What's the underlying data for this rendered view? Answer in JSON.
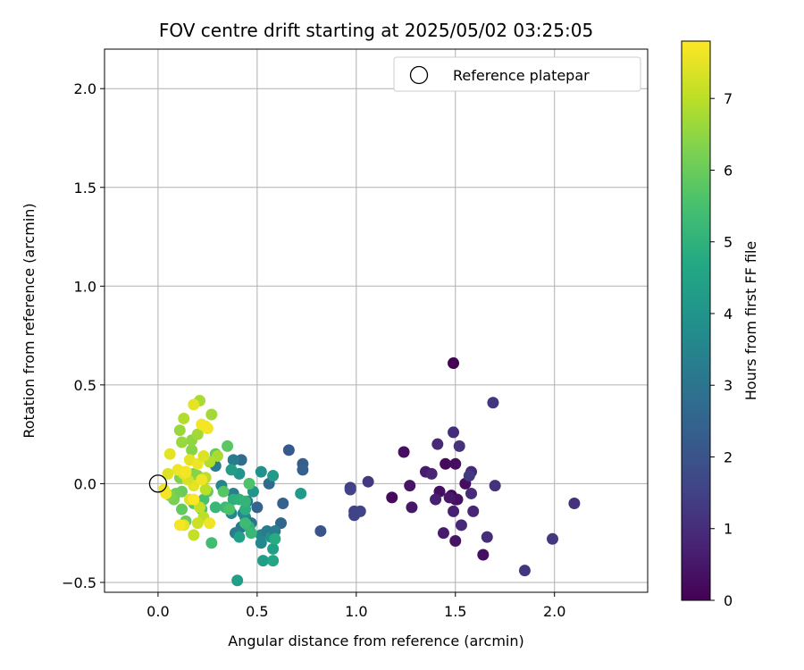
{
  "chart_data": {
    "type": "scatter",
    "title": "FOV centre drift starting at 2025/05/02 03:25:05",
    "xlabel": "Angular distance from reference (arcmin)",
    "ylabel": "Rotation from reference (arcmin)",
    "xlim": [
      -0.27,
      2.47
    ],
    "ylim": [
      -0.55,
      2.2
    ],
    "xticks": [
      0.0,
      0.5,
      1.0,
      1.5,
      2.0
    ],
    "xtick_labels": [
      "0.0",
      "0.5",
      "1.0",
      "1.5",
      "2.0"
    ],
    "yticks": [
      -0.5,
      0.0,
      0.5,
      1.0,
      1.5,
      2.0
    ],
    "ytick_labels": [
      "−0.5",
      "0.0",
      "0.5",
      "1.0",
      "1.5",
      "2.0"
    ],
    "grid": true,
    "legend": {
      "placement": "top-right",
      "entries": [
        "Reference platepar"
      ]
    },
    "reference_point": {
      "x": 0.0,
      "y": 0.0,
      "label": "Reference platepar"
    },
    "colorbar": {
      "label": "Hours from first FF file",
      "range": [
        0,
        7.8
      ],
      "ticks": [
        0,
        1,
        2,
        3,
        4,
        5,
        6,
        7
      ],
      "tick_labels": [
        "0",
        "1",
        "2",
        "3",
        "4",
        "5",
        "6",
        "7"
      ],
      "colormap": "viridis"
    },
    "points": [
      [
        1.49,
        0.61,
        0.0
      ],
      [
        1.45,
        0.1,
        0.2
      ],
      [
        1.5,
        0.1,
        0.3
      ],
      [
        1.55,
        0.0,
        0.25
      ],
      [
        1.42,
        -0.04,
        0.3
      ],
      [
        1.48,
        -0.06,
        0.1
      ],
      [
        1.5,
        -0.08,
        0.15
      ],
      [
        1.51,
        -0.08,
        0.35
      ],
      [
        1.47,
        -0.07,
        0.5
      ],
      [
        1.44,
        -0.25,
        0.6
      ],
      [
        1.5,
        -0.29,
        0.4
      ],
      [
        1.64,
        -0.36,
        0.3
      ],
      [
        1.18,
        -0.07,
        0.2
      ],
      [
        1.24,
        0.16,
        0.3
      ],
      [
        1.27,
        -0.01,
        0.4
      ],
      [
        1.28,
        -0.12,
        0.5
      ],
      [
        1.35,
        0.06,
        0.6
      ],
      [
        1.4,
        -0.08,
        0.7
      ],
      [
        1.38,
        0.05,
        0.8
      ],
      [
        1.41,
        0.2,
        0.9
      ],
      [
        1.49,
        0.26,
        1.0
      ],
      [
        1.52,
        0.19,
        1.1
      ],
      [
        1.58,
        0.06,
        0.9
      ],
      [
        1.58,
        -0.05,
        1.0
      ],
      [
        1.59,
        -0.14,
        0.8
      ],
      [
        1.53,
        -0.21,
        0.9
      ],
      [
        1.49,
        -0.14,
        0.7
      ],
      [
        1.66,
        -0.27,
        1.0
      ],
      [
        1.7,
        -0.01,
        1.1
      ],
      [
        1.69,
        0.41,
        1.2
      ],
      [
        1.85,
        -0.44,
        1.2
      ],
      [
        1.99,
        -0.28,
        1.3
      ],
      [
        2.1,
        -0.1,
        1.1
      ],
      [
        1.06,
        0.01,
        1.3
      ],
      [
        0.97,
        -0.02,
        1.4
      ],
      [
        0.97,
        -0.03,
        1.5
      ],
      [
        0.99,
        -0.14,
        1.5
      ],
      [
        1.02,
        -0.14,
        1.6
      ],
      [
        0.99,
        -0.16,
        1.5
      ],
      [
        1.57,
        0.04,
        1.3
      ],
      [
        0.82,
        -0.24,
        2.0
      ],
      [
        0.73,
        0.1,
        2.3
      ],
      [
        0.73,
        0.07,
        2.4
      ],
      [
        0.66,
        0.17,
        2.2
      ],
      [
        0.63,
        -0.1,
        2.4
      ],
      [
        0.62,
        -0.2,
        2.6
      ],
      [
        0.56,
        0.0,
        2.7
      ],
      [
        0.5,
        -0.12,
        2.5
      ],
      [
        0.45,
        -0.09,
        3.0
      ],
      [
        0.42,
        0.12,
        2.8
      ],
      [
        0.38,
        0.12,
        3.2
      ],
      [
        0.29,
        0.09,
        3.2
      ],
      [
        0.32,
        -0.01,
        3.5
      ],
      [
        0.38,
        -0.05,
        3.3
      ],
      [
        0.43,
        -0.15,
        3.4
      ],
      [
        0.42,
        -0.22,
        3.1
      ],
      [
        0.39,
        -0.25,
        3.3
      ],
      [
        0.37,
        -0.15,
        3.6
      ],
      [
        0.44,
        -0.17,
        3.7
      ],
      [
        0.47,
        -0.2,
        3.0
      ],
      [
        0.52,
        -0.26,
        3.5
      ],
      [
        0.52,
        -0.3,
        3.6
      ],
      [
        0.55,
        -0.24,
        3.2
      ],
      [
        0.57,
        -0.27,
        3.9
      ],
      [
        0.59,
        -0.24,
        3.3
      ],
      [
        0.52,
        0.06,
        3.9
      ],
      [
        0.58,
        0.04,
        4.2
      ],
      [
        0.72,
        -0.05,
        4.2
      ],
      [
        0.48,
        -0.04,
        4.0
      ],
      [
        0.41,
        0.05,
        4.0
      ],
      [
        0.37,
        0.07,
        4.3
      ],
      [
        0.41,
        -0.27,
        4.4
      ],
      [
        0.4,
        -0.49,
        4.3
      ],
      [
        0.53,
        -0.39,
        4.3
      ],
      [
        0.58,
        -0.39,
        4.6
      ],
      [
        0.58,
        -0.33,
        4.4
      ],
      [
        0.59,
        -0.28,
        4.8
      ],
      [
        0.38,
        -0.08,
        4.9
      ],
      [
        0.41,
        -0.08,
        5.0
      ],
      [
        0.44,
        -0.13,
        4.9
      ],
      [
        0.44,
        -0.09,
        5.1
      ],
      [
        0.46,
        -0.22,
        5.0
      ],
      [
        0.47,
        -0.25,
        5.2
      ],
      [
        0.44,
        -0.2,
        5.3
      ],
      [
        0.34,
        -0.12,
        5.3
      ],
      [
        0.29,
        -0.12,
        5.2
      ],
      [
        0.27,
        -0.3,
        5.4
      ],
      [
        0.46,
        0.0,
        5.6
      ],
      [
        0.36,
        -0.13,
        5.6
      ],
      [
        0.33,
        -0.04,
        5.7
      ],
      [
        0.35,
        0.19,
        5.8
      ],
      [
        0.29,
        0.15,
        5.9
      ],
      [
        0.25,
        -0.04,
        5.9
      ],
      [
        0.23,
        -0.08,
        5.5
      ],
      [
        0.22,
        -0.13,
        5.6
      ],
      [
        0.18,
        -0.1,
        5.8
      ],
      [
        0.14,
        -0.19,
        6.0
      ],
      [
        0.12,
        -0.13,
        5.9
      ],
      [
        0.12,
        -0.04,
        6.0
      ],
      [
        0.09,
        -0.05,
        6.1
      ],
      [
        0.08,
        -0.08,
        6.2
      ],
      [
        0.06,
        -0.06,
        6.3
      ],
      [
        0.11,
        0.03,
        6.3
      ],
      [
        0.14,
        0.06,
        6.4
      ],
      [
        0.18,
        0.05,
        6.3
      ],
      [
        0.2,
        0.04,
        6.4
      ],
      [
        0.17,
        0.17,
        6.4
      ],
      [
        0.17,
        0.22,
        6.5
      ],
      [
        0.12,
        0.21,
        6.6
      ],
      [
        0.11,
        0.27,
        6.6
      ],
      [
        0.2,
        0.25,
        6.7
      ],
      [
        0.27,
        0.35,
        6.7
      ],
      [
        0.21,
        0.42,
        6.8
      ],
      [
        0.13,
        0.33,
        6.9
      ],
      [
        0.3,
        0.14,
        6.8
      ],
      [
        0.26,
        0.11,
        6.9
      ],
      [
        0.24,
        0.03,
        7.0
      ],
      [
        0.24,
        -0.03,
        7.0
      ],
      [
        0.23,
        -0.17,
        7.0
      ],
      [
        0.21,
        -0.12,
        7.1
      ],
      [
        0.2,
        -0.2,
        7.2
      ],
      [
        0.18,
        -0.26,
        7.1
      ],
      [
        0.13,
        -0.21,
        7.5
      ],
      [
        0.16,
        -0.08,
        7.4
      ],
      [
        0.18,
        -0.01,
        7.5
      ],
      [
        0.15,
        0.02,
        7.3
      ],
      [
        0.13,
        0.05,
        7.5
      ],
      [
        0.1,
        0.07,
        7.6
      ],
      [
        0.05,
        0.05,
        7.4
      ],
      [
        0.06,
        0.15,
        7.5
      ],
      [
        0.03,
        -0.03,
        7.6
      ],
      [
        0.04,
        -0.05,
        7.7
      ],
      [
        0.16,
        0.12,
        7.5
      ],
      [
        0.2,
        0.1,
        7.6
      ],
      [
        0.23,
        0.14,
        7.4
      ],
      [
        0.25,
        0.28,
        7.6
      ],
      [
        0.22,
        0.3,
        7.7
      ],
      [
        0.24,
        0.29,
        7.7
      ],
      [
        0.18,
        0.4,
        7.5
      ],
      [
        0.14,
        0.06,
        7.7
      ],
      [
        0.26,
        -0.2,
        7.6
      ],
      [
        0.11,
        -0.21,
        7.7
      ],
      [
        0.18,
        -0.08,
        7.8
      ],
      [
        0.22,
        0.02,
        7.6
      ]
    ]
  }
}
